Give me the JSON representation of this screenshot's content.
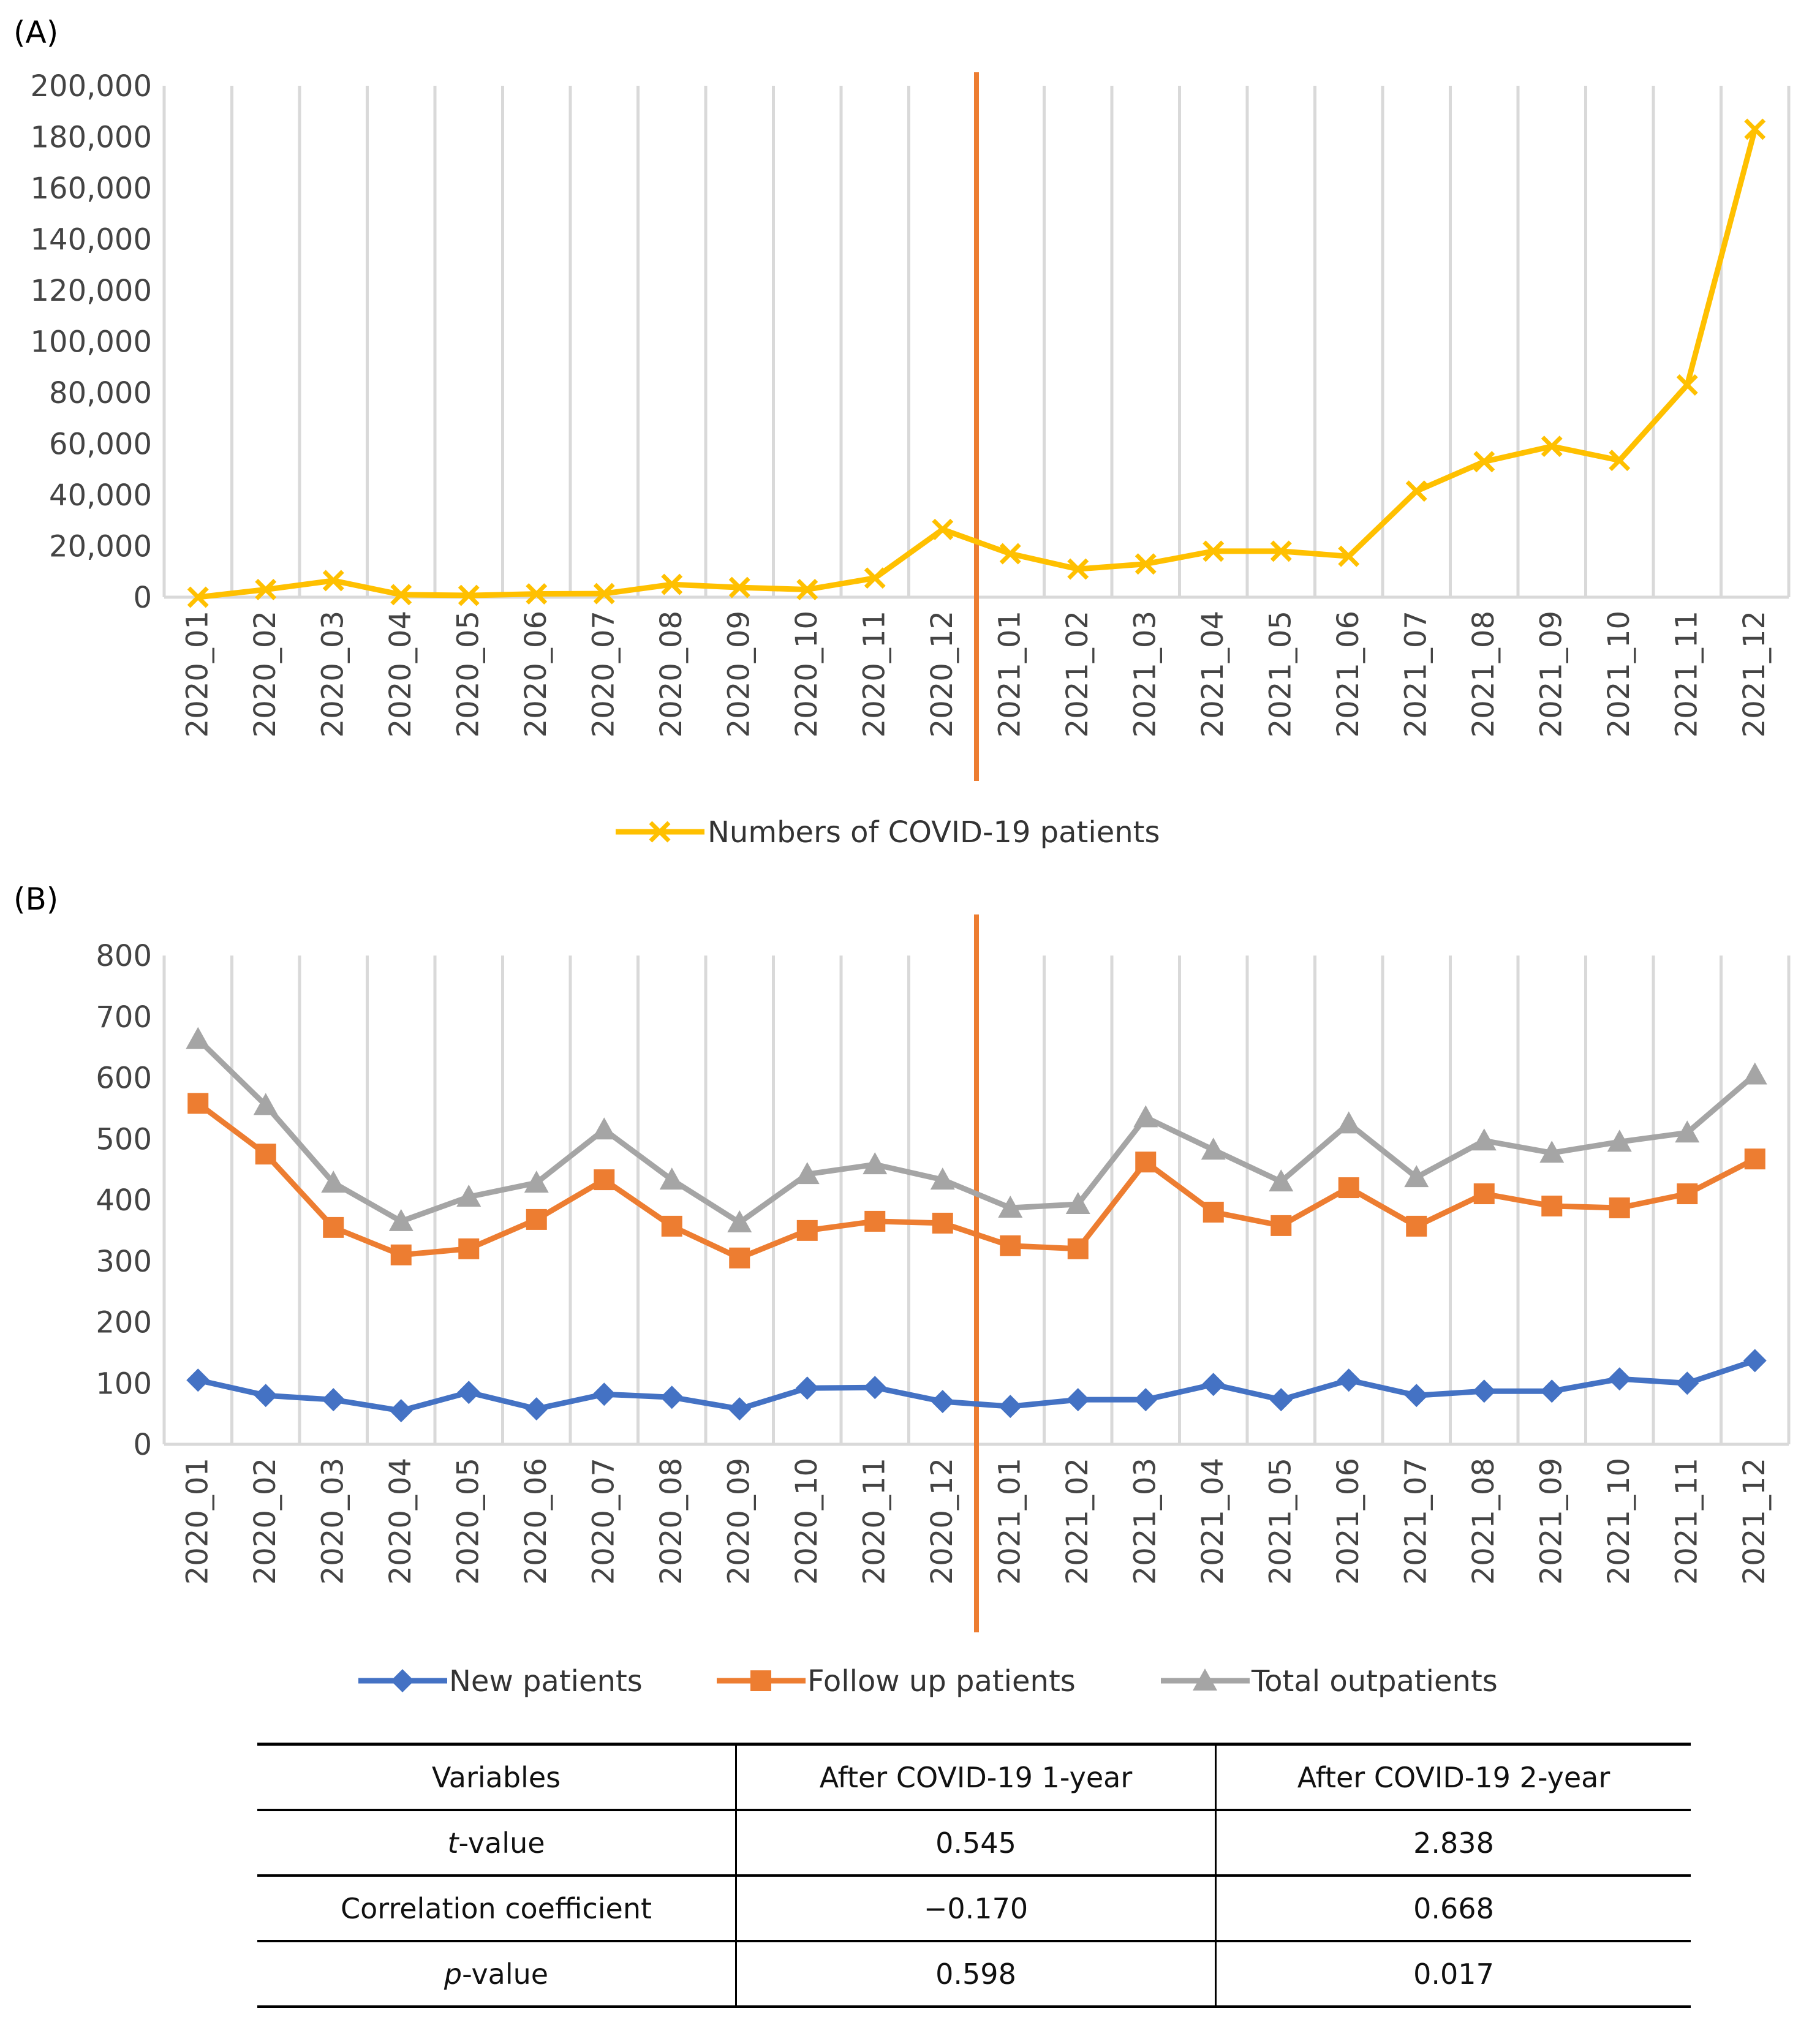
{
  "panels": {
    "a": {
      "label": "(A)",
      "legend": "Numbers of COVID-19 patients"
    },
    "b": {
      "label": "(B)",
      "legend": [
        "New patients",
        "Follow up patients",
        "Total outpatients"
      ]
    }
  },
  "colors": {
    "covid": "#FFC000",
    "new": "#4472C4",
    "followup": "#ED7D31",
    "total": "#A5A5A5",
    "divider": "#ED7D31",
    "grid": "#D9D9D9"
  },
  "chart_data": [
    {
      "type": "line",
      "panel": "A",
      "title": "",
      "categories": [
        "2020_01",
        "2020_02",
        "2020_03",
        "2020_04",
        "2020_05",
        "2020_06",
        "2020_07",
        "2020_08",
        "2020_09",
        "2020_10",
        "2020_11",
        "2020_12",
        "2021_01",
        "2021_02",
        "2021_03",
        "2021_04",
        "2021_05",
        "2021_06",
        "2021_07",
        "2021_08",
        "2021_09",
        "2021_10",
        "2021_11",
        "2021_12"
      ],
      "series": [
        {
          "name": "Numbers of COVID-19 patients",
          "marker": "x",
          "values": [
            0,
            3000,
            6500,
            1000,
            700,
            1300,
            1400,
            5000,
            3800,
            3000,
            7500,
            26500,
            17000,
            11000,
            13000,
            18000,
            18000,
            16000,
            41500,
            53000,
            59000,
            53500,
            83000,
            183000
          ]
        }
      ],
      "ylim": [
        0,
        200000
      ],
      "yticks": [
        0,
        20000,
        40000,
        60000,
        80000,
        100000,
        120000,
        140000,
        160000,
        180000,
        200000
      ],
      "ytick_labels": [
        "0",
        "20,000",
        "40,000",
        "60,000",
        "80,000",
        "100,000",
        "120,000",
        "140,000",
        "160,000",
        "180,000",
        "200,000"
      ],
      "divider_after": "2020_12",
      "grid": true,
      "legend_position": "bottom"
    },
    {
      "type": "line",
      "panel": "B",
      "title": "",
      "categories": [
        "2020_01",
        "2020_02",
        "2020_03",
        "2020_04",
        "2020_05",
        "2020_06",
        "2020_07",
        "2020_08",
        "2020_09",
        "2020_10",
        "2020_11",
        "2020_12",
        "2021_01",
        "2021_02",
        "2021_03",
        "2021_04",
        "2021_05",
        "2021_06",
        "2021_07",
        "2021_08",
        "2021_09",
        "2021_10",
        "2021_11",
        "2021_12"
      ],
      "series": [
        {
          "name": "New patients",
          "marker": "diamond",
          "values": [
            105,
            80,
            73,
            55,
            85,
            58,
            82,
            77,
            58,
            92,
            93,
            70,
            62,
            73,
            73,
            98,
            73,
            105,
            80,
            87,
            87,
            107,
            100,
            137
          ]
        },
        {
          "name": "Follow up patients",
          "marker": "square",
          "values": [
            558,
            475,
            355,
            310,
            320,
            368,
            433,
            357,
            305,
            350,
            365,
            362,
            325,
            320,
            462,
            380,
            358,
            420,
            357,
            410,
            390,
            387,
            410,
            467
          ]
        },
        {
          "name": "Total outpatients",
          "marker": "triangle",
          "values": [
            663,
            555,
            428,
            365,
            405,
            428,
            515,
            433,
            363,
            442,
            458,
            433,
            387,
            393,
            535,
            482,
            430,
            525,
            437,
            497,
            477,
            495,
            510,
            605
          ]
        }
      ],
      "ylim": [
        0,
        800
      ],
      "yticks": [
        0,
        100,
        200,
        300,
        400,
        500,
        600,
        700,
        800
      ],
      "ytick_labels": [
        "0",
        "100",
        "200",
        "300",
        "400",
        "500",
        "600",
        "700",
        "800"
      ],
      "divider_after": "2020_12",
      "grid": true,
      "legend_position": "bottom"
    }
  ],
  "table": {
    "headers": [
      "Variables",
      "After COVID-19 1-year",
      "After COVID-19 2-year"
    ],
    "rows": [
      {
        "var_italic": "t",
        "var_rest": "-value",
        "y1": "0.545",
        "y2": "2.838"
      },
      {
        "var_italic": "",
        "var_rest": "Correlation coefficient",
        "y1": "−0.170",
        "y2": "0.668"
      },
      {
        "var_italic": "p",
        "var_rest": "-value",
        "y1": "0.598",
        "y2": "0.017"
      }
    ]
  }
}
